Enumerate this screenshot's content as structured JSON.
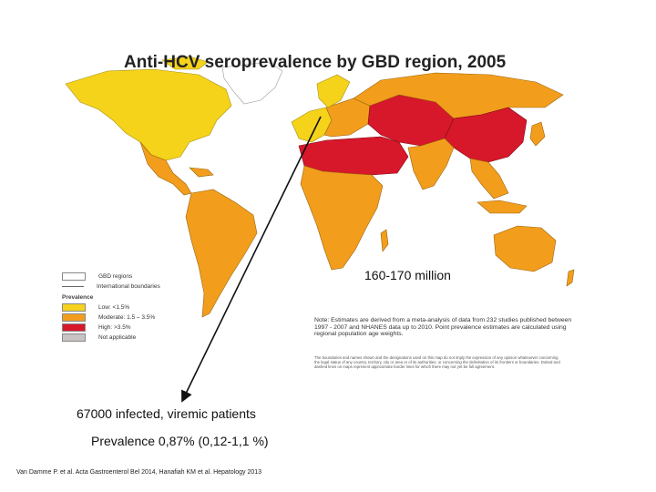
{
  "map": {
    "title": "Anti-HCV seroprevalence by GBD region, 2005",
    "legend": {
      "gbd_regions": "GBD regions",
      "international_boundaries": "International boundaries",
      "heading": "Prevalence",
      "items": [
        {
          "label": "Low: <1.5%",
          "color": "#f5d31a"
        },
        {
          "label": "Moderate: 1.5 – 3.5%",
          "color": "#f29e1c"
        },
        {
          "label": "High: >3.5%",
          "color": "#d7172a"
        },
        {
          "label": "Not applicable",
          "color": "#c9c3c3"
        }
      ]
    },
    "note": "Note: Estimates are derived from a meta-analysis of data from 232 studies published between 1997 - 2007 and NHANES data up to 2010. Point prevalence estimates are calculated using regional population age weights.",
    "disclaimer": "The boundaries and names shown and the designations used on this map do not imply the expression of any opinion whatsoever concerning the legal status of any country, territory, city or area or of its authorities, or concerning the delimitation of its frontiers or boundaries. Dotted and dashed lines on maps represent approximate border lines for which there may not yet be full agreement."
  },
  "annotations": {
    "global": "160-170 million",
    "infected": "67000 infected,  viremic patients",
    "prevalence": "Prevalence 0,87% (0,12-1,1 %)"
  },
  "citation": "Van Damme P. et al. Acta Gastroenterol Bel 2014, Hanafiah KM et al. Hepatology 2013"
}
